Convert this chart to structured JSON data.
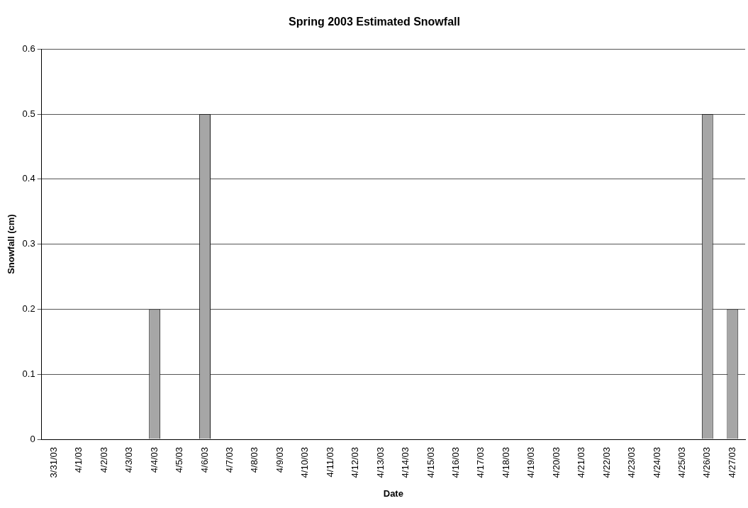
{
  "chart_data": {
    "type": "bar",
    "title": "Spring 2003 Estimated Snowfall",
    "xlabel": "Date",
    "ylabel": "Snowfall (cm)",
    "categories": [
      "3/31/03",
      "4/1/03",
      "4/2/03",
      "4/3/03",
      "4/4/03",
      "4/5/03",
      "4/6/03",
      "4/7/03",
      "4/8/03",
      "4/9/03",
      "4/10/03",
      "4/11/03",
      "4/12/03",
      "4/13/03",
      "4/14/03",
      "4/15/03",
      "4/16/03",
      "4/17/03",
      "4/18/03",
      "4/19/03",
      "4/20/03",
      "4/21/03",
      "4/22/03",
      "4/23/03",
      "4/24/03",
      "4/25/03",
      "4/26/03",
      "4/27/03"
    ],
    "values": [
      0,
      0,
      0,
      0,
      0.2,
      0,
      0.5,
      0,
      0,
      0,
      0,
      0,
      0,
      0,
      0,
      0,
      0,
      0,
      0,
      0,
      0,
      0,
      0,
      0,
      0,
      0,
      0.5,
      0.2
    ],
    "color": "#a6a6a6",
    "ylim": [
      0,
      0.6
    ],
    "yticks": [
      0,
      0.1,
      0.2,
      0.3,
      0.4,
      0.5,
      0.6
    ],
    "grid": "y",
    "legend": false
  }
}
